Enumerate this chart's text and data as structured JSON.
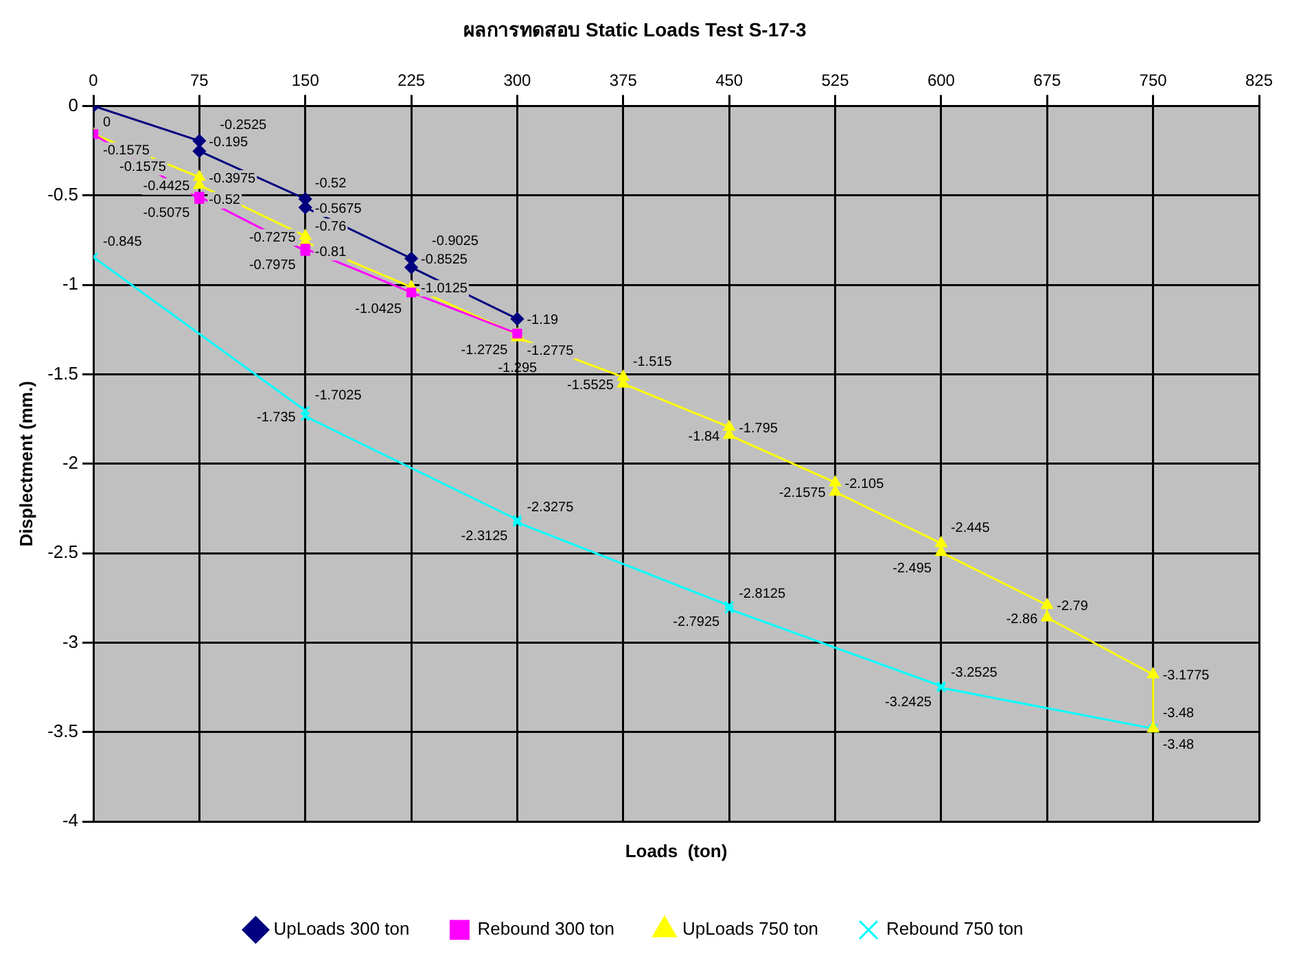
{
  "chart_data": {
    "type": "line",
    "title": "ผลการทดสอบ Static Loads Test S-17-3",
    "xlabel": "Loads  (ton)",
    "ylabel": "Displectment (mm.)",
    "xlim": [
      0,
      825
    ],
    "xticks": [
      0,
      75,
      150,
      225,
      300,
      375,
      450,
      525,
      600,
      675,
      750,
      825
    ],
    "ylim": [
      -4,
      0
    ],
    "yticks": [
      -4,
      -3.5,
      -3,
      -2.5,
      -2,
      -1.5,
      -1,
      -0.5,
      0
    ],
    "grid": true,
    "legend": "bottom",
    "data_labels": true,
    "series": [
      {
        "name": "UpLoads 300 ton",
        "color": "#000080",
        "marker": "diamond",
        "x": [
          0,
          75,
          75,
          150,
          150,
          225,
          225,
          300
        ],
        "values": [
          0,
          -0.195,
          -0.2525,
          -0.52,
          -0.5675,
          -0.8525,
          -0.9025,
          -1.19
        ]
      },
      {
        "name": "Rebound 300 ton",
        "color": "#ff00ff",
        "marker": "square",
        "x": [
          300,
          225,
          150,
          150,
          75,
          75,
          0
        ],
        "values": [
          -1.2725,
          -1.0425,
          -0.7975,
          -0.81,
          -0.5075,
          -0.52,
          -0.1575
        ]
      },
      {
        "name": "UpLoads 750 ton",
        "color": "#ffff00",
        "marker": "triangle",
        "x": [
          0,
          75,
          75,
          150,
          150,
          225,
          300,
          300,
          375,
          375,
          450,
          450,
          525,
          525,
          600,
          600,
          675,
          675,
          750,
          750
        ],
        "values": [
          -0.1575,
          -0.3975,
          -0.4425,
          -0.7275,
          -0.76,
          -1.0125,
          -1.2775,
          -1.295,
          -1.515,
          -1.5525,
          -1.795,
          -1.84,
          -2.105,
          -2.1575,
          -2.445,
          -2.495,
          -2.79,
          -2.86,
          -3.1775,
          -3.48
        ]
      },
      {
        "name": "Rebound 750 ton",
        "color": "#00ffff",
        "marker": "cross",
        "x": [
          750,
          600,
          600,
          450,
          450,
          300,
          300,
          150,
          150,
          0
        ],
        "values": [
          -3.48,
          -3.2525,
          -3.2425,
          -2.8125,
          -2.7925,
          -2.3275,
          -2.3125,
          -1.735,
          -1.7025,
          -0.845
        ]
      }
    ]
  }
}
